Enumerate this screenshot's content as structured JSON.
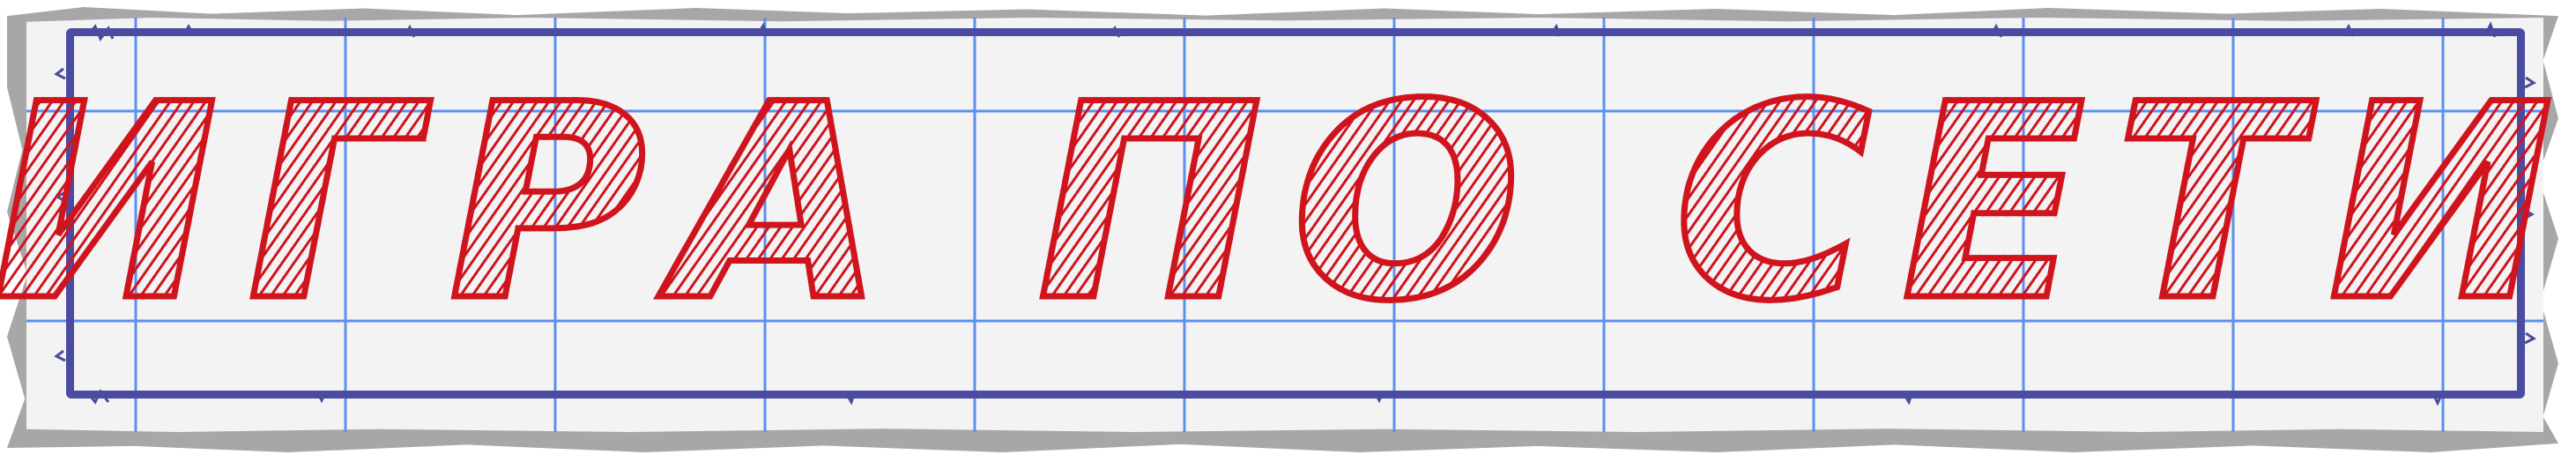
{
  "title": "ИГРА ПО СЕТИ",
  "colors": {
    "paper": "#f3f3f3",
    "paper_edge": "#a7a7a7",
    "grid_lines": "#5b8ff0",
    "frame": "#4a4ba1",
    "title_ink": "#d0141e"
  }
}
